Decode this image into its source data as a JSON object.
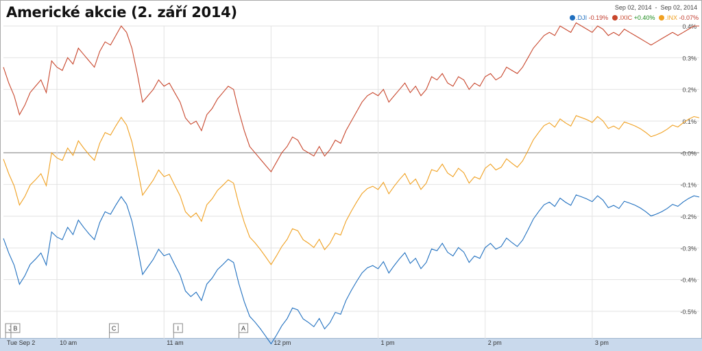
{
  "title": "Americké akcie (2. září 2014)",
  "date_range": "Sep 02, 2014  -  Sep 02, 2014",
  "legend": [
    {
      "name": ".DJI",
      "change": "-0.19%",
      "color": "#1f6fbf",
      "change_color": "#c0392b"
    },
    {
      "name": ".IXIC",
      "change": "+0.40%",
      "color": "#c8462c",
      "change_color": "#1a8a1a"
    },
    {
      "name": ".INX",
      "change": "-0.07%",
      "color": "#f0a020",
      "change_color": "#c0392b"
    }
  ],
  "events": [
    {
      "label": "J"
    },
    {
      "label": "B"
    },
    {
      "label": "C"
    },
    {
      "label": "I"
    },
    {
      "label": "A"
    }
  ],
  "chart_data": {
    "type": "line",
    "x_labels": [
      "Tue Sep 2",
      "10 am",
      "11 am",
      "12 pm",
      "1 pm",
      "2 pm",
      "3 pm"
    ],
    "y_tick_labels": [
      "0.4%",
      "0.3%",
      "0.2%",
      "0.1%",
      "-0.0%",
      "-0.1%",
      "-0.2%",
      "-0.3%",
      "-0.4%",
      "-0.5%"
    ],
    "ylim": [
      -0.5,
      0.4
    ],
    "xlim": [
      9.5,
      16.0
    ],
    "series": [
      {
        "name": ".IXIC",
        "color": "#c8462c",
        "x": [
          9.5,
          9.55,
          9.6,
          9.65,
          9.7,
          9.75,
          9.8,
          9.85,
          9.9,
          9.95,
          10.0,
          10.05,
          10.1,
          10.15,
          10.2,
          10.25,
          10.3,
          10.35,
          10.4,
          10.45,
          10.5,
          10.55,
          10.6,
          10.65,
          10.7,
          10.75,
          10.8,
          10.85,
          10.9,
          10.95,
          11.0,
          11.05,
          11.1,
          11.15,
          11.2,
          11.25,
          11.3,
          11.35,
          11.4,
          11.45,
          11.5,
          11.55,
          11.6,
          11.65,
          11.7,
          11.75,
          11.8,
          11.85,
          11.9,
          11.95,
          12.0,
          12.05,
          12.1,
          12.15,
          12.2,
          12.25,
          12.3,
          12.35,
          12.4,
          12.45,
          12.5,
          12.55,
          12.6,
          12.65,
          12.7,
          12.75,
          12.8,
          12.85,
          12.9,
          12.95,
          13.0,
          13.05,
          13.1,
          13.15,
          13.2,
          13.25,
          13.3,
          13.35,
          13.4,
          13.45,
          13.5,
          13.55,
          13.6,
          13.65,
          13.7,
          13.75,
          13.8,
          13.85,
          13.9,
          13.95,
          14.0,
          14.05,
          14.1,
          14.15,
          14.2,
          14.25,
          14.3,
          14.35,
          14.4,
          14.45,
          14.5,
          14.55,
          14.6,
          14.65,
          14.7,
          14.75,
          14.8,
          14.85,
          14.9,
          14.95,
          15.0,
          15.05,
          15.1,
          15.15,
          15.2,
          15.25,
          15.3,
          15.35,
          15.4,
          15.45,
          15.5,
          15.55,
          15.6,
          15.65,
          15.7,
          15.75,
          15.8,
          15.85,
          15.9,
          15.95,
          16.0
        ],
        "values": [
          0.27,
          0.22,
          0.18,
          0.12,
          0.15,
          0.19,
          0.21,
          0.23,
          0.19,
          0.29,
          0.27,
          0.26,
          0.3,
          0.28,
          0.33,
          0.31,
          0.29,
          0.27,
          0.32,
          0.35,
          0.34,
          0.37,
          0.4,
          0.38,
          0.33,
          0.25,
          0.16,
          0.18,
          0.2,
          0.23,
          0.21,
          0.22,
          0.19,
          0.16,
          0.11,
          0.09,
          0.1,
          0.07,
          0.12,
          0.14,
          0.17,
          0.19,
          0.21,
          0.2,
          0.13,
          0.07,
          0.02,
          0.0,
          -0.02,
          -0.04,
          -0.06,
          -0.03,
          0.0,
          0.02,
          0.05,
          0.04,
          0.01,
          0.0,
          -0.01,
          0.02,
          -0.01,
          0.01,
          0.04,
          0.03,
          0.07,
          0.1,
          0.13,
          0.16,
          0.18,
          0.19,
          0.18,
          0.2,
          0.16,
          0.18,
          0.2,
          0.22,
          0.19,
          0.21,
          0.18,
          0.2,
          0.24,
          0.23,
          0.25,
          0.22,
          0.21,
          0.24,
          0.23,
          0.2,
          0.22,
          0.21,
          0.24,
          0.25,
          0.23,
          0.24,
          0.27,
          0.26,
          0.25,
          0.27,
          0.3,
          0.33,
          0.35,
          0.37,
          0.38,
          0.37,
          0.4,
          0.39,
          0.38,
          0.41,
          0.4,
          0.39,
          0.38,
          0.4,
          0.39,
          0.37,
          0.38,
          0.37,
          0.39,
          0.38,
          0.37,
          0.36,
          0.35,
          0.34,
          0.35,
          0.36,
          0.37,
          0.38,
          0.37,
          0.38,
          0.39,
          0.4,
          0.4
        ],
        "note_y_scale": "IXIC plotted on same percent axis"
      }
    ]
  }
}
